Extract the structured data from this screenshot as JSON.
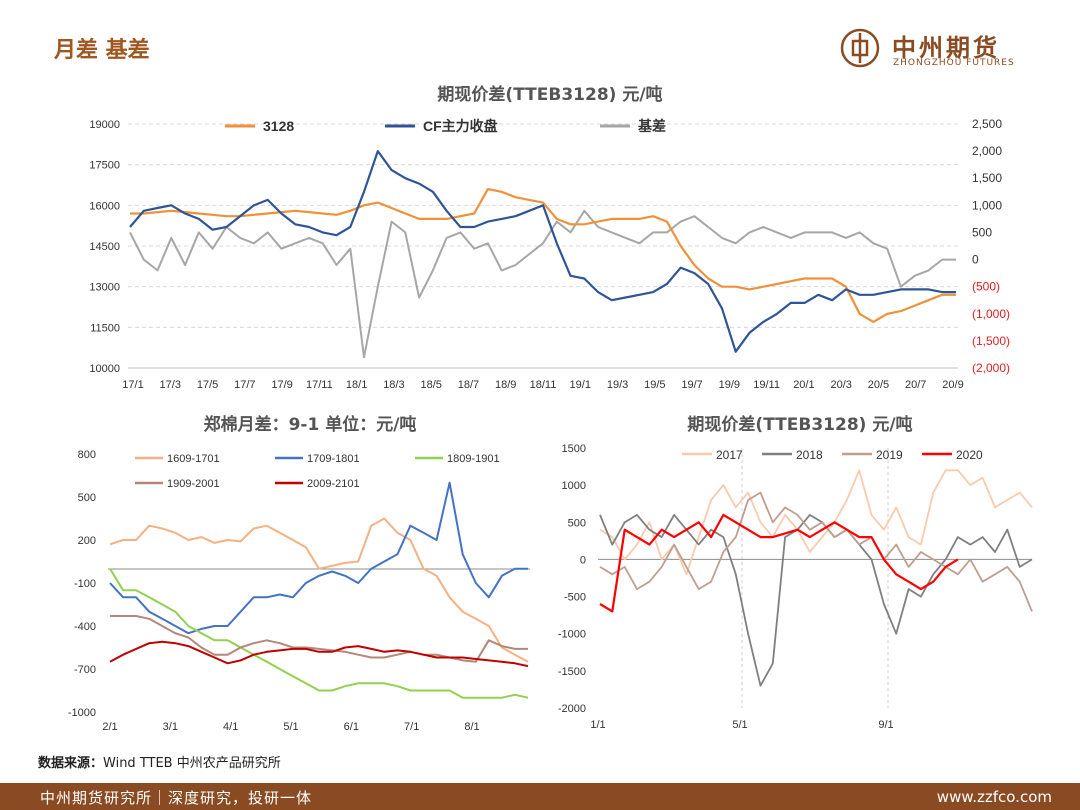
{
  "page": {
    "title": "月差 基差",
    "logo_cn": "中州期货",
    "logo_en": "ZHONGZHOU FUTURES",
    "source_label": "数据来源：",
    "source_text": "Wind TTEB 中州农产品研究所",
    "footer_left": "中州期货研究所｜深度研究，投研一体",
    "footer_right": "www.zzfco.com",
    "colors": {
      "brand": "#8a4b22",
      "accent": "#a0561f"
    }
  },
  "chart_data": [
    {
      "type": "line",
      "title": "期现价差(TTEB3128) 元/吨",
      "x_ticks": [
        "17/1",
        "17/3",
        "17/5",
        "17/7",
        "17/9",
        "17/11",
        "18/1",
        "18/3",
        "18/5",
        "18/7",
        "18/9",
        "18/11",
        "19/1",
        "19/3",
        "19/5",
        "19/7",
        "19/9",
        "19/11",
        "20/1",
        "20/3",
        "20/5",
        "20/7",
        "20/9"
      ],
      "y_left_ticks": [
        "19000",
        "17500",
        "16000",
        "14500",
        "13000",
        "11500",
        "10000"
      ],
      "y_left_range": [
        10000,
        19000
      ],
      "y_right_ticks": [
        "2,500",
        "2,000",
        "1,500",
        "1,000",
        "500",
        "0",
        "(500)",
        "(1,000)",
        "(1,500)",
        "(2,000)"
      ],
      "y_right_range": [
        -2000,
        2500
      ],
      "grid": true,
      "legend": "top",
      "series": [
        {
          "name": "3128",
          "axis": "left",
          "color": "#f0913a",
          "values": [
            15700,
            15700,
            15750,
            15800,
            15750,
            15700,
            15650,
            15600,
            15600,
            15650,
            15700,
            15750,
            15800,
            15750,
            15700,
            15650,
            15800,
            16000,
            16100,
            15900,
            15700,
            15500,
            15500,
            15500,
            15600,
            15700,
            16600,
            16500,
            16300,
            16200,
            16100,
            15500,
            15300,
            15300,
            15400,
            15500,
            15500,
            15500,
            15600,
            15400,
            14500,
            13800,
            13300,
            13000,
            13000,
            12900,
            13000,
            13100,
            13200,
            13300,
            13300,
            13300,
            13000,
            12000,
            11700,
            12000,
            12100,
            12300,
            12500,
            12700,
            12700
          ]
        },
        {
          "name": "CF主力收盘",
          "axis": "left",
          "color": "#2f5597",
          "values": [
            15200,
            15800,
            15900,
            16000,
            15700,
            15500,
            15100,
            15200,
            15600,
            16000,
            16200,
            15700,
            15300,
            15200,
            15000,
            14900,
            15200,
            16500,
            18000,
            17300,
            17000,
            16800,
            16500,
            15800,
            15200,
            15200,
            15400,
            15500,
            15600,
            15800,
            16000,
            14600,
            13400,
            13300,
            12800,
            12500,
            12600,
            12700,
            12800,
            13100,
            13700,
            13500,
            13100,
            12200,
            10600,
            11300,
            11700,
            12000,
            12400,
            12400,
            12700,
            12500,
            12900,
            12700,
            12700,
            12800,
            12900,
            12900,
            12900,
            12800,
            12800
          ]
        },
        {
          "name": "基差",
          "axis": "right",
          "color": "#a6a6a6",
          "values": [
            500,
            0,
            -200,
            400,
            -100,
            500,
            200,
            600,
            400,
            300,
            500,
            200,
            300,
            400,
            300,
            -100,
            200,
            -1800,
            -500,
            700,
            500,
            -700,
            -200,
            400,
            500,
            200,
            300,
            -200,
            -100,
            100,
            300,
            700,
            500,
            900,
            600,
            500,
            400,
            300,
            500,
            500,
            700,
            800,
            600,
            400,
            300,
            500,
            600,
            500,
            400,
            500,
            500,
            500,
            400,
            500,
            300,
            200,
            -500,
            -300,
            -200,
            0,
            0
          ]
        }
      ]
    },
    {
      "type": "line",
      "title": "郑棉月差：9-1  单位：元/吨",
      "x_ticks": [
        "2/1",
        "3/1",
        "4/1",
        "5/1",
        "6/1",
        "7/1",
        "8/1"
      ],
      "y_ticks": [
        "800",
        "500",
        "200",
        "-100",
        "-400",
        "-700",
        "-1000"
      ],
      "y_range": [
        -1000,
        800
      ],
      "legend": "top",
      "series": [
        {
          "name": "1609-1701",
          "color": "#f4b183",
          "values": [
            170,
            200,
            200,
            300,
            280,
            250,
            200,
            220,
            180,
            200,
            190,
            280,
            300,
            250,
            200,
            150,
            0,
            20,
            40,
            50,
            300,
            350,
            250,
            200,
            0,
            -50,
            -200,
            -300,
            -350,
            -400,
            -550,
            -600,
            -650
          ]
        },
        {
          "name": "1709-1801",
          "color": "#4472c4",
          "values": [
            -100,
            -200,
            -200,
            -300,
            -350,
            -400,
            -450,
            -420,
            -400,
            -400,
            -300,
            -200,
            -200,
            -180,
            -200,
            -100,
            -50,
            -20,
            -50,
            -100,
            0,
            50,
            100,
            300,
            250,
            200,
            600,
            100,
            -100,
            -200,
            -50,
            0,
            0
          ]
        },
        {
          "name": "1809-1901",
          "color": "#92d050",
          "values": [
            0,
            -150,
            -150,
            -200,
            -250,
            -300,
            -400,
            -450,
            -500,
            -500,
            -550,
            -600,
            -650,
            -700,
            -750,
            -800,
            -850,
            -850,
            -820,
            -800,
            -800,
            -800,
            -820,
            -850,
            -850,
            -850,
            -850,
            -900,
            -900,
            -900,
            -900,
            -880,
            -900
          ]
        },
        {
          "name": "1909-2001",
          "color": "#b4877a",
          "values": [
            -330,
            -330,
            -330,
            -350,
            -400,
            -450,
            -480,
            -550,
            -600,
            -600,
            -550,
            -520,
            -500,
            -520,
            -550,
            -550,
            -560,
            -570,
            -580,
            -600,
            -620,
            -620,
            -600,
            -580,
            -600,
            -600,
            -620,
            -640,
            -650,
            -500,
            -540,
            -560,
            -560
          ]
        },
        {
          "name": "2009-2101",
          "color": "#c00000",
          "values": [
            -650,
            -600,
            -560,
            -520,
            -510,
            -520,
            -540,
            -580,
            -620,
            -660,
            -640,
            -600,
            -580,
            -570,
            -560,
            -560,
            -580,
            -580,
            -550,
            -540,
            -560,
            -580,
            -570,
            -580,
            -600,
            -620,
            -620,
            -620,
            -630,
            -640,
            -650,
            -660,
            -680
          ]
        }
      ]
    },
    {
      "type": "line",
      "title": "期现价差(TTEB3128) 元/吨",
      "x_ticks": [
        "1/1",
        "5/1",
        "9/1"
      ],
      "y_ticks": [
        "1500",
        "1000",
        "500",
        "0",
        "-500",
        "-1000",
        "-1500",
        "-2000"
      ],
      "y_range": [
        -2000,
        1500
      ],
      "legend": "top",
      "series": [
        {
          "name": "2017",
          "color": "#f8cbad",
          "values": [
            400,
            300,
            0,
            200,
            500,
            0,
            200,
            -200,
            300,
            800,
            1000,
            700,
            900,
            500,
            300,
            600,
            400,
            100,
            300,
            500,
            800,
            1200,
            600,
            400,
            700,
            300,
            200,
            900,
            1200,
            1200,
            1000,
            1100,
            700,
            800,
            900,
            700
          ]
        },
        {
          "name": "2018",
          "color": "#7f7f7f",
          "values": [
            600,
            200,
            500,
            600,
            400,
            300,
            600,
            400,
            200,
            400,
            300,
            -200,
            -1000,
            -1700,
            -1400,
            300,
            400,
            600,
            500,
            300,
            400,
            200,
            0,
            -600,
            -1000,
            -400,
            -500,
            -200,
            0,
            300,
            200,
            300,
            100,
            400,
            -100,
            0
          ]
        },
        {
          "name": "2019",
          "color": "#bf9e8e",
          "values": [
            -100,
            -200,
            -100,
            -400,
            -300,
            -100,
            200,
            -100,
            -400,
            -300,
            100,
            300,
            800,
            900,
            500,
            700,
            600,
            400,
            500,
            300,
            400,
            200,
            300,
            0,
            200,
            -100,
            100,
            0,
            -100,
            -200,
            0,
            -300,
            -200,
            -100,
            -300,
            -700
          ]
        },
        {
          "name": "2020",
          "color": "#ff0000",
          "values": [
            -600,
            -700,
            400,
            300,
            200,
            400,
            300,
            400,
            500,
            300,
            600,
            500,
            400,
            300,
            300,
            350,
            400,
            300,
            400,
            500,
            400,
            300,
            300,
            0,
            -200,
            -300,
            -400,
            -300,
            -100,
            0
          ]
        }
      ]
    }
  ]
}
